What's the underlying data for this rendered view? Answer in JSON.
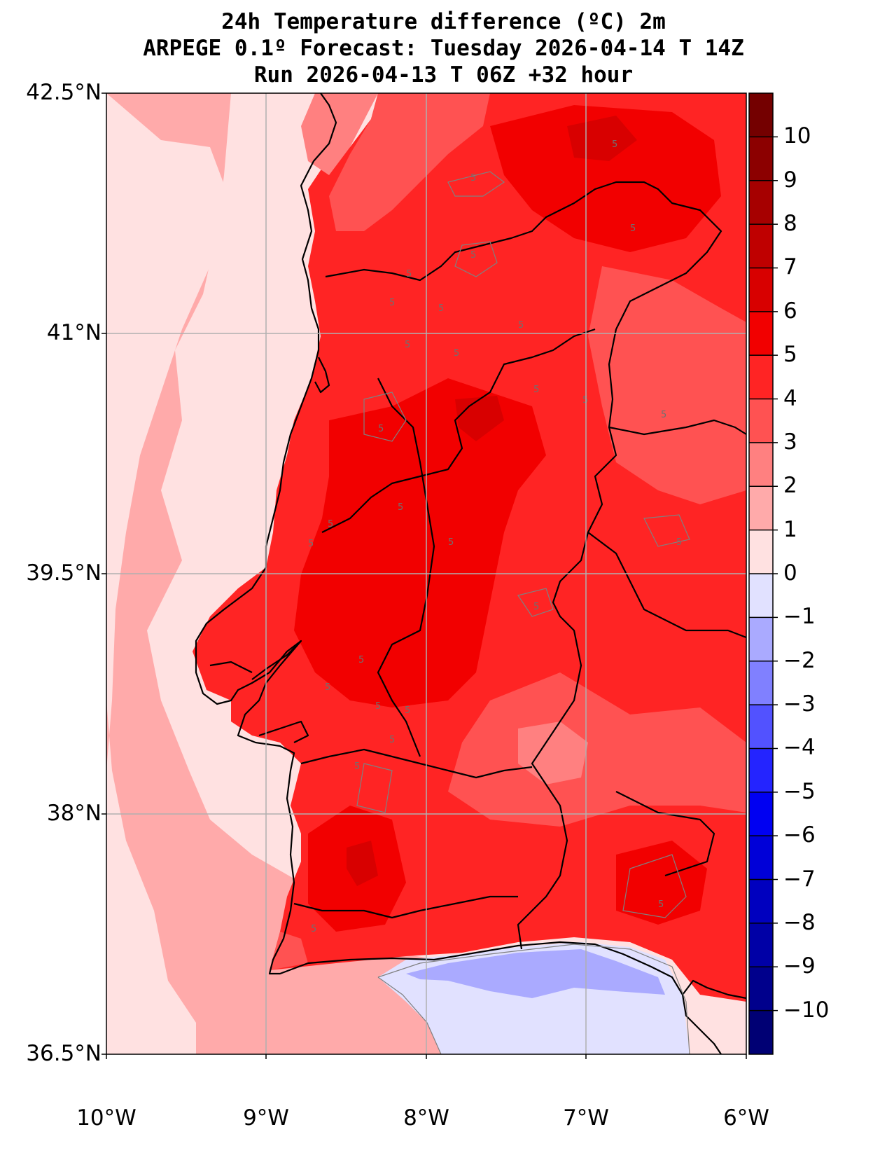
{
  "title": {
    "line1": "24h Temperature difference (ºC) 2m",
    "line2": "ARPEGE 0.1º Forecast: Tuesday 2026-04-14 T 14Z",
    "line3": "Run 2026-04-13 T 06Z +32 hour"
  },
  "axes": {
    "lat_labels": [
      "42.5°N",
      "41°N",
      "39.5°N",
      "38°N",
      "36.5°N"
    ],
    "lon_labels": [
      "10°W",
      "9°W",
      "8°W",
      "7°W",
      "6°W"
    ],
    "lat_range": [
      36.5,
      42.5
    ],
    "lon_range": [
      -10,
      -6
    ],
    "grid": true
  },
  "colorbar": {
    "ticks": [
      "10",
      "9",
      "8",
      "7",
      "6",
      "5",
      "4",
      "3",
      "2",
      "1",
      "0",
      "−1",
      "−2",
      "−3",
      "−4",
      "−5",
      "−6",
      "−7",
      "−8",
      "−9",
      "−10"
    ],
    "range": [
      -11,
      11
    ],
    "colors_pos": [
      "#ffe1e1",
      "#ffaaaa",
      "#ff8080",
      "#ff5252",
      "#ff2424",
      "#f20000",
      "#d80000",
      "#bf0000",
      "#a60000",
      "#8c0000",
      "#740000"
    ],
    "colors_neg": [
      "#e1e1ff",
      "#aaaaff",
      "#8080ff",
      "#5252ff",
      "#2424ff",
      "#0000f2",
      "#0000d8",
      "#0000bf",
      "#0000a6",
      "#00008c",
      "#000074"
    ]
  },
  "contour_label": "5",
  "colors": {
    "ocean_near": "#ffaaaa",
    "ocean_far": "#ffe1e1",
    "land_base": "#ff2424",
    "land_hot": "#f20000",
    "land_hottest": "#d80000",
    "cool_spot": "#ff5252",
    "warm_spot": "#ff8080",
    "gulf_cool": "#e1e1ff",
    "gulf_cooler": "#aaaaff",
    "border": "#000000",
    "grid": "#b0b0b0"
  }
}
